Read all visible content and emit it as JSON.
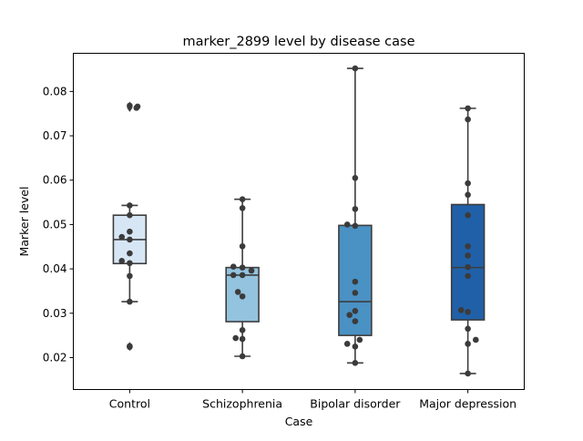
{
  "chart_data": {
    "type": "box",
    "title": "marker_2899 level by disease case",
    "xlabel": "Case",
    "ylabel": "Marker level",
    "ylim": [
      0.0128,
      0.0886
    ],
    "yticks": [
      0.02,
      0.03,
      0.04,
      0.05,
      0.06,
      0.07,
      0.08
    ],
    "ytick_labels": [
      "0.02",
      "0.03",
      "0.04",
      "0.05",
      "0.06",
      "0.07",
      "0.08"
    ],
    "categories": [
      "Control",
      "Schizophrenia",
      "Bipolar disorder",
      "Major depression"
    ],
    "colors": [
      "#d7e6f4",
      "#93c3de",
      "#4a91c4",
      "#2060a8"
    ],
    "boxes": [
      {
        "q1": 0.0412,
        "median": 0.0466,
        "q3": 0.0521,
        "whisker_low": 0.0326,
        "whisker_high": 0.0543,
        "outliers": [
          0.0768,
          0.0766,
          0.0763,
          0.0226,
          0.0224
        ]
      },
      {
        "q1": 0.0281,
        "median": 0.0386,
        "q3": 0.0403,
        "whisker_low": 0.0203,
        "whisker_high": 0.0557,
        "outliers": []
      },
      {
        "q1": 0.025,
        "median": 0.0326,
        "q3": 0.0498,
        "whisker_low": 0.0188,
        "whisker_high": 0.0852,
        "outliers": []
      },
      {
        "q1": 0.0285,
        "median": 0.0403,
        "q3": 0.0545,
        "whisker_low": 0.0164,
        "whisker_high": 0.0762,
        "outliers": []
      }
    ],
    "points": [
      [
        {
          "x": 0.0,
          "y": 0.0768
        },
        {
          "x": 0.07,
          "y": 0.0766
        },
        {
          "x": 0.06,
          "y": 0.0763
        },
        {
          "x": 0.0,
          "y": 0.0543
        },
        {
          "x": 0.0,
          "y": 0.0521
        },
        {
          "x": 0.0,
          "y": 0.0484
        },
        {
          "x": -0.07,
          "y": 0.0472
        },
        {
          "x": 0.0,
          "y": 0.0466
        },
        {
          "x": 0.0,
          "y": 0.0435
        },
        {
          "x": -0.07,
          "y": 0.0418
        },
        {
          "x": 0.0,
          "y": 0.0413
        },
        {
          "x": 0.0,
          "y": 0.0384
        },
        {
          "x": 0.0,
          "y": 0.0326
        },
        {
          "x": 0.0,
          "y": 0.0226
        },
        {
          "x": 0.0,
          "y": 0.0224
        }
      ],
      [
        {
          "x": 0.0,
          "y": 0.0557
        },
        {
          "x": 0.0,
          "y": 0.0537
        },
        {
          "x": 0.0,
          "y": 0.0451
        },
        {
          "x": -0.08,
          "y": 0.0405
        },
        {
          "x": 0.0,
          "y": 0.0403
        },
        {
          "x": 0.08,
          "y": 0.0396
        },
        {
          "x": -0.08,
          "y": 0.0386
        },
        {
          "x": 0.0,
          "y": 0.0386
        },
        {
          "x": -0.04,
          "y": 0.0348
        },
        {
          "x": 0.0,
          "y": 0.0338
        },
        {
          "x": 0.0,
          "y": 0.0262
        },
        {
          "x": -0.06,
          "y": 0.0244
        },
        {
          "x": 0.0,
          "y": 0.0242
        },
        {
          "x": 0.0,
          "y": 0.0203
        }
      ],
      [
        {
          "x": 0.0,
          "y": 0.0852
        },
        {
          "x": 0.0,
          "y": 0.0605
        },
        {
          "x": 0.0,
          "y": 0.0535
        },
        {
          "x": -0.07,
          "y": 0.05
        },
        {
          "x": 0.0,
          "y": 0.0497
        },
        {
          "x": 0.0,
          "y": 0.0371
        },
        {
          "x": 0.0,
          "y": 0.0346
        },
        {
          "x": 0.0,
          "y": 0.0305
        },
        {
          "x": -0.05,
          "y": 0.0296
        },
        {
          "x": 0.0,
          "y": 0.0282
        },
        {
          "x": 0.04,
          "y": 0.024
        },
        {
          "x": -0.07,
          "y": 0.0231
        },
        {
          "x": 0.0,
          "y": 0.0225
        },
        {
          "x": 0.0,
          "y": 0.0188
        }
      ],
      [
        {
          "x": 0.0,
          "y": 0.0762
        },
        {
          "x": 0.0,
          "y": 0.0737
        },
        {
          "x": 0.0,
          "y": 0.0593
        },
        {
          "x": 0.0,
          "y": 0.0567
        },
        {
          "x": 0.0,
          "y": 0.0521
        },
        {
          "x": 0.0,
          "y": 0.0451
        },
        {
          "x": 0.0,
          "y": 0.043
        },
        {
          "x": 0.0,
          "y": 0.0404
        },
        {
          "x": 0.0,
          "y": 0.0384
        },
        {
          "x": -0.06,
          "y": 0.0307
        },
        {
          "x": 0.0,
          "y": 0.0303
        },
        {
          "x": 0.0,
          "y": 0.0265
        },
        {
          "x": 0.07,
          "y": 0.024
        },
        {
          "x": 0.0,
          "y": 0.0231
        },
        {
          "x": 0.0,
          "y": 0.0164
        }
      ]
    ],
    "grid": false,
    "legend": "none"
  }
}
